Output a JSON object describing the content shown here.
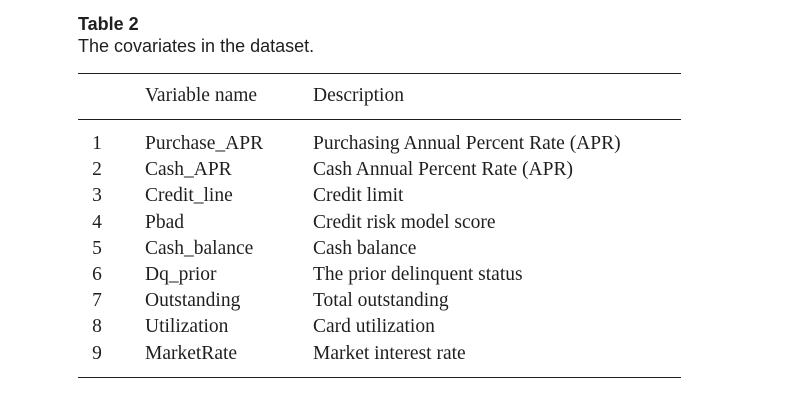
{
  "table": {
    "label": "Table 2",
    "caption": "The covariates in the dataset.",
    "headers": {
      "number": "",
      "variable": "Variable name",
      "description": "Description"
    },
    "rows": [
      {
        "num": "1",
        "variable": "Purchase_APR",
        "description": "Purchasing Annual Percent Rate (APR)"
      },
      {
        "num": "2",
        "variable": "Cash_APR",
        "description": "Cash Annual Percent Rate (APR)"
      },
      {
        "num": "3",
        "variable": "Credit_line",
        "description": "Credit limit"
      },
      {
        "num": "4",
        "variable": "Pbad",
        "description": "Credit risk model score"
      },
      {
        "num": "5",
        "variable": "Cash_balance",
        "description": "Cash balance"
      },
      {
        "num": "6",
        "variable": "Dq_prior",
        "description": "The prior delinquent status"
      },
      {
        "num": "7",
        "variable": "Outstanding",
        "description": "Total outstanding"
      },
      {
        "num": "8",
        "variable": "Utilization",
        "description": "Card utilization"
      },
      {
        "num": "9",
        "variable": "MarketRate",
        "description": "Market interest rate"
      }
    ]
  }
}
